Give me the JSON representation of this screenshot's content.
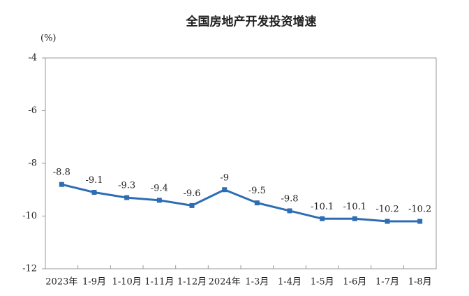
{
  "chart_data": {
    "type": "line",
    "title": "全国房地产开发投资增速",
    "y_label": "(%)",
    "categories": [
      "2023年",
      "1-9月",
      "1-10月",
      "1-11月",
      "1-12月",
      "2024年",
      "1-3月",
      "1-4月",
      "1-5月",
      "1-6月",
      "1-7月",
      "1-8月"
    ],
    "values": [
      -8.8,
      -9.1,
      -9.3,
      -9.4,
      -9.6,
      -9.0,
      -9.5,
      -9.8,
      -10.1,
      -10.1,
      -10.2,
      -10.2
    ],
    "color": "#2e6db4",
    "ylim": [
      -12,
      -4
    ],
    "yticks": [
      -12,
      -10,
      -8,
      -6,
      -4
    ],
    "grid": false
  }
}
